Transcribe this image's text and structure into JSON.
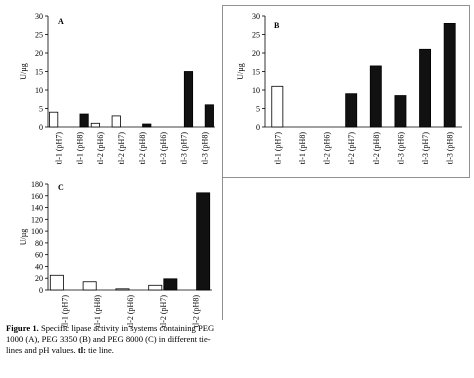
{
  "chart_data": [
    {
      "type": "bar",
      "title": "A",
      "ylabel": "U/µg",
      "categories": [
        "tl-1 (pH7)",
        "tl-1 (pH8)",
        "tl-2 (pH6)",
        "tl-2 (pH7)",
        "tl-2 (pH8)",
        "tl-3 (pH6)",
        "tl-3 (pH7)",
        "tl-3 (pH8)"
      ],
      "series": [
        {
          "color": "#ffffff",
          "values": [
            4,
            0,
            1,
            3,
            0,
            0,
            0,
            0
          ]
        },
        {
          "color": "#111111",
          "values": [
            0,
            3.5,
            0,
            0,
            0.8,
            0,
            15,
            6
          ]
        }
      ],
      "ylim": [
        0,
        30
      ],
      "yticks": [
        0,
        5,
        10,
        15,
        20,
        25,
        30
      ]
    },
    {
      "type": "bar",
      "title": "B",
      "ylabel": "U/µg",
      "categories": [
        "tl-1 (pH7)",
        "tl-1 (pH8)",
        "tl-2 (pH6)",
        "tl-2 (pH7)",
        "tl-2 (pH8)",
        "tl-3 (pH6)",
        "tl-3 (pH7)",
        "tl-3 (pH8)"
      ],
      "series": [
        {
          "colors": [
            "#ffffff",
            "#111111",
            "#111111",
            "#111111",
            "#111111",
            "#111111",
            "#111111",
            "#111111"
          ],
          "values": [
            11,
            0,
            0,
            9,
            16.5,
            8.5,
            21,
            28
          ]
        }
      ],
      "ylim": [
        0,
        30
      ],
      "yticks": [
        0,
        5,
        10,
        15,
        20,
        25,
        30
      ]
    },
    {
      "type": "bar",
      "title": "C",
      "ylabel": "U/µg",
      "categories": [
        "tl-1 (pH7)",
        "tl-1 (pH8)",
        "tl-2 (pH6)",
        "tl-2 (pH7)",
        "tl-2 (pH8)"
      ],
      "series": [
        {
          "color": "#ffffff",
          "values": [
            25,
            14,
            2,
            8,
            0
          ]
        },
        {
          "color": "#111111",
          "values": [
            0,
            0,
            0,
            19,
            165
          ]
        }
      ],
      "ylim": [
        0,
        180
      ],
      "yticks": [
        0,
        20,
        40,
        60,
        80,
        100,
        120,
        140,
        160,
        180
      ]
    }
  ],
  "caption": {
    "label": "Figure 1.",
    "text": "Specific lipase activity in systems containing PEG 1000 (A), PEG 3350 (B) and PEG 8000 (C) in different tie-lines and pH values.",
    "abbr": "tl:",
    "abbr_text": "tie line."
  }
}
